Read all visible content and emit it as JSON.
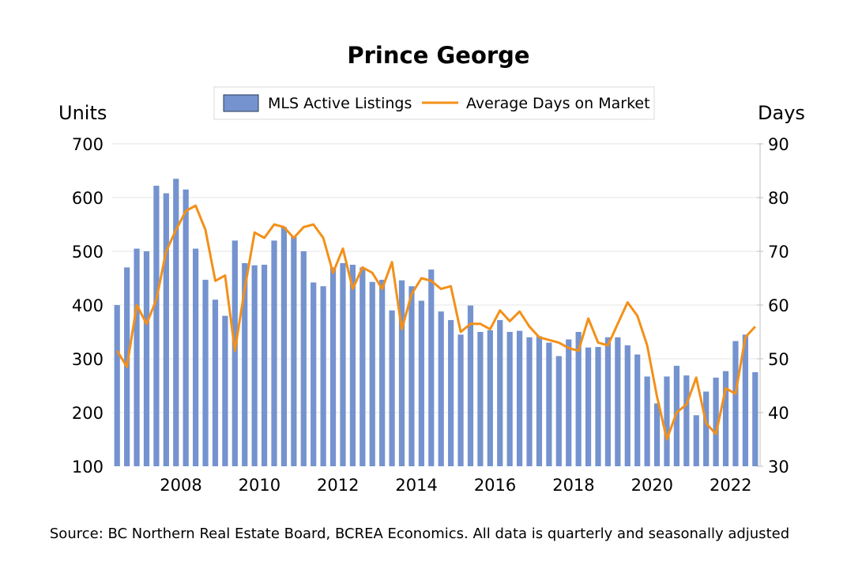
{
  "chart_data": {
    "type": "bar",
    "title": "Prince George",
    "y_left_label": "Units",
    "y_right_label": "Days",
    "y_left_lim": [
      100,
      700
    ],
    "y_left_ticks": [
      "700",
      "600",
      "500",
      "400",
      "300",
      "200",
      "100"
    ],
    "y_right_lim": [
      30,
      90
    ],
    "y_right_ticks": [
      "90",
      "80",
      "70",
      "60",
      "50",
      "40",
      "30"
    ],
    "x_ticks": [
      "2008",
      "2010",
      "2012",
      "2014",
      "2016",
      "2018",
      "2020",
      "2022"
    ],
    "x_start": "2006 Q4",
    "legend_position": "top",
    "series": [
      {
        "name": "MLS Active Listings",
        "axis": "left",
        "type": "bar",
        "color": "#7493cf",
        "values": [
          400,
          470,
          505,
          500,
          622,
          608,
          635,
          615,
          505,
          447,
          410,
          380,
          520,
          478,
          474,
          475,
          520,
          545,
          527,
          500,
          442,
          435,
          470,
          478,
          475,
          470,
          443,
          447,
          390,
          446,
          435,
          408,
          466,
          388,
          372,
          345,
          399,
          350,
          353,
          372,
          350,
          352,
          340,
          342,
          330,
          305,
          336,
          350,
          321,
          322,
          340,
          340,
          325,
          308,
          267,
          217,
          267,
          287,
          269,
          195,
          239,
          265,
          277,
          333,
          345,
          275
        ]
      },
      {
        "name": "Average Days on Market",
        "axis": "right",
        "type": "line",
        "color": "#f39018",
        "values": [
          51.5,
          48.5,
          60,
          56.5,
          61,
          70,
          74,
          77.5,
          78.5,
          74,
          64.5,
          65.5,
          51.5,
          63,
          73.5,
          72.5,
          75,
          74.5,
          72.5,
          74.5,
          75,
          72.5,
          66,
          70.5,
          63,
          67,
          66,
          63,
          68,
          55.5,
          62,
          65,
          64.5,
          63,
          63.5,
          55,
          56.5,
          56.5,
          55.5,
          59,
          57,
          58.8,
          56,
          54,
          53.5,
          53,
          52,
          51.5,
          57.5,
          53,
          52.5,
          56.5,
          60.5,
          58,
          52.5,
          43,
          35,
          40,
          41.5,
          46.5,
          38,
          36,
          44.5,
          43.5,
          54,
          56
        ]
      }
    ]
  },
  "source": "Source: BC Northern Real Estate Board, BCREA Economics. All data is quarterly and seasonally adjusted"
}
